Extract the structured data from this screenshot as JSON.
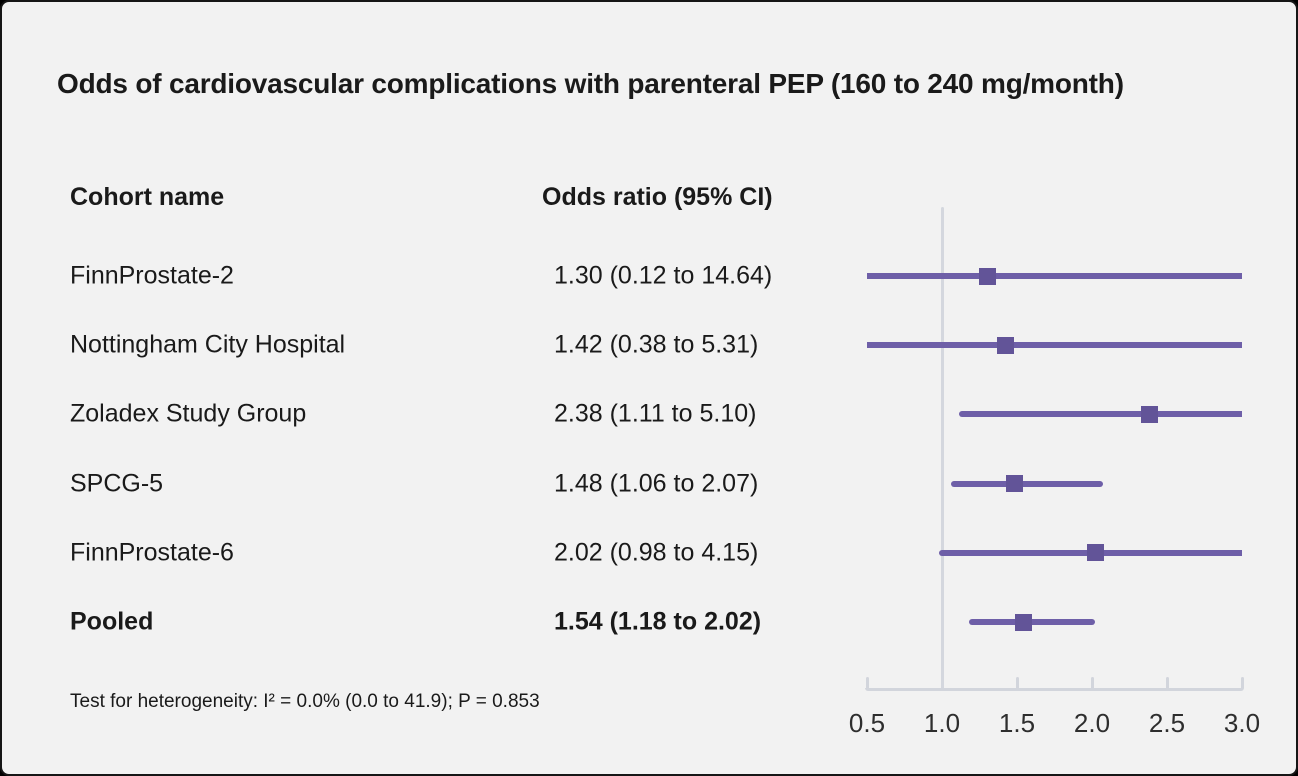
{
  "title": "Odds of cardiovascular complications with parenteral PEP (160 to 240 mg/month)",
  "table": {
    "cohort_header": "Cohort name",
    "or_header": "Odds ratio (95% CI)"
  },
  "footnote": "Test for heterogeneity: I² = 0.0% (0.0 to 41.9); P = 0.853",
  "colors": {
    "background": "#f2f2f2",
    "frame_border": "#161616",
    "ci_line": "#6e5fa8",
    "marker": "#625498",
    "reference_line": "#d4d7de",
    "axis": "#d2d5dc",
    "text": "#1a1a1a",
    "axis_label_text": "#2e2e2e"
  },
  "chart_data": {
    "type": "scatter",
    "variant": "forest-plot",
    "title": "Odds of cardiovascular complications with parenteral PEP (160 to 240 mg/month)",
    "xlim": [
      0.5,
      3.0
    ],
    "x_ticks": [
      0.5,
      1.0,
      1.5,
      2.0,
      2.5,
      3.0
    ],
    "x_tick_labels": [
      "0.5",
      "1.0",
      "1.5",
      "2.0",
      "2.5",
      "3.0"
    ],
    "reference_line_x": 1.0,
    "marker_shape": "square",
    "legend": null,
    "grid": false,
    "columns": [
      "Cohort name",
      "Odds ratio (95% CI)"
    ],
    "rows": [
      {
        "cohort": "FinnProstate-2",
        "or": 1.3,
        "ci_low": 0.12,
        "ci_high": 14.64,
        "display": "1.30 (0.12 to 14.64)",
        "pooled": false
      },
      {
        "cohort": "Nottingham City Hospital",
        "or": 1.42,
        "ci_low": 0.38,
        "ci_high": 5.31,
        "display": "1.42 (0.38 to 5.31)",
        "pooled": false
      },
      {
        "cohort": "Zoladex Study Group",
        "or": 2.38,
        "ci_low": 1.11,
        "ci_high": 5.1,
        "display": "2.38 (1.11 to 5.10)",
        "pooled": false
      },
      {
        "cohort": "SPCG-5",
        "or": 1.48,
        "ci_low": 1.06,
        "ci_high": 2.07,
        "display": "1.48 (1.06 to 2.07)",
        "pooled": false
      },
      {
        "cohort": "FinnProstate-6",
        "or": 2.02,
        "ci_low": 0.98,
        "ci_high": 4.15,
        "display": "2.02 (0.98 to 4.15)",
        "pooled": false
      },
      {
        "cohort": "Pooled",
        "or": 1.54,
        "ci_low": 1.18,
        "ci_high": 2.02,
        "display": "1.54 (1.18 to 2.02)",
        "pooled": true
      }
    ],
    "heterogeneity_note": "Test for heterogeneity: I² = 0.0% (0.0 to 41.9); P = 0.853"
  }
}
